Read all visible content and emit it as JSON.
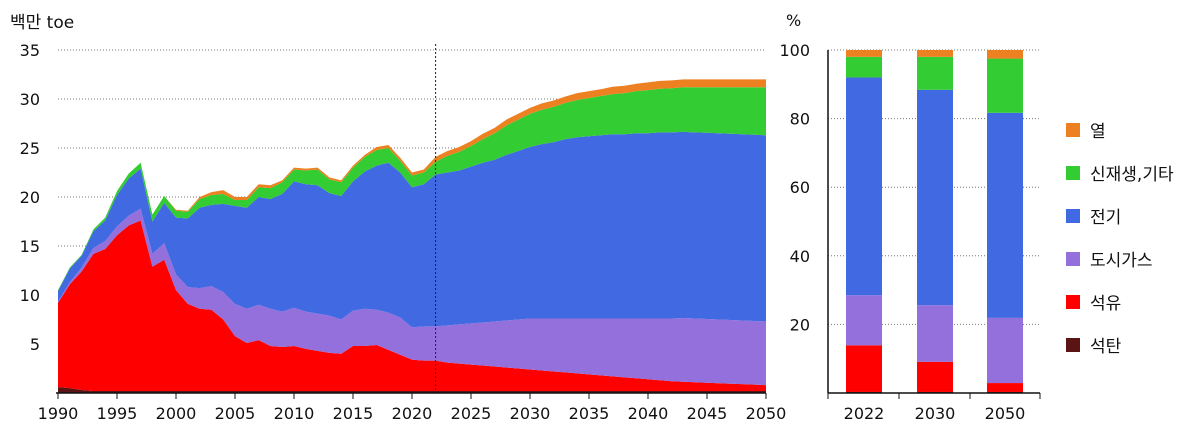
{
  "chart_data": [
    {
      "type": "area",
      "ylabel": "백만 toe",
      "x_ticks": [
        "1990",
        "1995",
        "2000",
        "2005",
        "2010",
        "2015",
        "2020",
        "2025",
        "2030",
        "2035",
        "2040",
        "2045",
        "2050"
      ],
      "y_ticks": [
        "5",
        "10",
        "15",
        "20",
        "25",
        "30",
        "35"
      ],
      "xlim": [
        1990,
        2050
      ],
      "ylim": [
        0,
        35
      ],
      "grid": "horizontal dotted",
      "reference_line_x": 2022,
      "stacking": "stacked",
      "x": [
        1990,
        1991,
        1992,
        1993,
        1994,
        1995,
        1996,
        1997,
        1998,
        1999,
        2000,
        2001,
        2002,
        2003,
        2004,
        2005,
        2006,
        2007,
        2008,
        2009,
        2010,
        2011,
        2012,
        2013,
        2014,
        2015,
        2016,
        2017,
        2018,
        2019,
        2020,
        2021,
        2022,
        2023,
        2024,
        2025,
        2026,
        2027,
        2028,
        2029,
        2030,
        2031,
        2032,
        2033,
        2034,
        2035,
        2036,
        2037,
        2038,
        2039,
        2040,
        2041,
        2042,
        2043,
        2044,
        2045,
        2046,
        2047,
        2048,
        2049,
        2050
      ],
      "series": [
        {
          "name": "석탄",
          "color": "#5a1414",
          "values": [
            0.6,
            0.5,
            0.3,
            0.2,
            0.2,
            0.2,
            0.2,
            0.2,
            0.2,
            0.2,
            0.2,
            0.2,
            0.2,
            0.2,
            0.2,
            0.2,
            0.2,
            0.2,
            0.2,
            0.2,
            0.2,
            0.2,
            0.2,
            0.2,
            0.2,
            0.2,
            0.2,
            0.2,
            0.2,
            0.2,
            0.2,
            0.2,
            0.2,
            0.2,
            0.2,
            0.2,
            0.2,
            0.2,
            0.2,
            0.2,
            0.2,
            0.2,
            0.2,
            0.2,
            0.2,
            0.2,
            0.2,
            0.2,
            0.2,
            0.2,
            0.2,
            0.2,
            0.2,
            0.2,
            0.2,
            0.2,
            0.2,
            0.2,
            0.2,
            0.2,
            0.2
          ]
        },
        {
          "name": "석유",
          "color": "#ff0000",
          "values": [
            8.6,
            10.6,
            12.1,
            14.0,
            14.5,
            15.9,
            16.9,
            17.4,
            12.7,
            13.4,
            10.3,
            8.9,
            8.4,
            8.3,
            7.3,
            5.6,
            4.9,
            5.2,
            4.6,
            4.5,
            4.6,
            4.3,
            4.1,
            3.9,
            3.8,
            4.6,
            4.6,
            4.7,
            4.2,
            3.7,
            3.2,
            3.1,
            3.1,
            2.9,
            2.8,
            2.7,
            2.6,
            2.5,
            2.4,
            2.3,
            2.2,
            2.1,
            2.0,
            1.9,
            1.8,
            1.7,
            1.6,
            1.5,
            1.4,
            1.3,
            1.2,
            1.1,
            1.0,
            0.95,
            0.9,
            0.85,
            0.8,
            0.75,
            0.7,
            0.65,
            0.6
          ]
        },
        {
          "name": "도시가스",
          "color": "#9370db",
          "values": [
            0.1,
            0.2,
            0.4,
            0.6,
            0.8,
            0.9,
            1.0,
            1.2,
            1.3,
            1.7,
            1.6,
            1.7,
            2.1,
            2.4,
            2.8,
            3.3,
            3.5,
            3.6,
            3.8,
            3.6,
            3.9,
            3.8,
            3.8,
            3.8,
            3.5,
            3.6,
            3.8,
            3.6,
            3.8,
            3.8,
            3.3,
            3.5,
            3.5,
            3.8,
            4.0,
            4.2,
            4.4,
            4.6,
            4.8,
            5.0,
            5.2,
            5.3,
            5.4,
            5.5,
            5.6,
            5.7,
            5.8,
            5.9,
            6.0,
            6.1,
            6.2,
            6.3,
            6.4,
            6.5,
            6.5,
            6.5,
            6.5,
            6.5,
            6.5,
            6.5,
            6.5
          ]
        },
        {
          "name": "전기",
          "color": "#4169e1",
          "values": [
            1.1,
            1.4,
            1.2,
            1.7,
            2.1,
            3.2,
            3.8,
            4.1,
            3.3,
            4.1,
            5.8,
            7.0,
            8.2,
            8.3,
            9.0,
            10.0,
            10.3,
            11.0,
            11.2,
            12.0,
            12.9,
            13.0,
            13.1,
            12.5,
            12.6,
            13.2,
            14.0,
            14.7,
            15.3,
            14.8,
            14.3,
            14.5,
            15.5,
            15.6,
            15.7,
            16.0,
            16.3,
            16.5,
            16.9,
            17.2,
            17.5,
            17.8,
            18.0,
            18.3,
            18.5,
            18.6,
            18.7,
            18.8,
            18.8,
            18.9,
            18.9,
            19.0,
            19.0,
            19.0,
            19.0,
            19.0,
            19.0,
            19.0,
            19.0,
            19.0,
            19.0
          ]
        },
        {
          "name": "신재생,기타",
          "color": "#33cc33",
          "values": [
            0.1,
            0.1,
            0.1,
            0.2,
            0.3,
            0.4,
            0.5,
            0.6,
            0.7,
            0.7,
            0.7,
            0.7,
            0.9,
            1.0,
            1.0,
            0.6,
            0.8,
            1.0,
            1.1,
            1.2,
            1.2,
            1.4,
            1.6,
            1.4,
            1.4,
            1.4,
            1.5,
            1.6,
            1.5,
            1.2,
            1.2,
            1.2,
            1.3,
            1.7,
            1.9,
            2.1,
            2.4,
            2.7,
            3.0,
            3.2,
            3.4,
            3.5,
            3.6,
            3.7,
            3.8,
            3.9,
            4.0,
            4.1,
            4.2,
            4.3,
            4.4,
            4.45,
            4.5,
            4.55,
            4.6,
            4.65,
            4.7,
            4.75,
            4.8,
            4.85,
            4.9
          ]
        },
        {
          "name": "열",
          "color": "#ed8121",
          "values": [
            0,
            0,
            0,
            0,
            0,
            0,
            0,
            0,
            0,
            0,
            0.1,
            0.1,
            0.2,
            0.3,
            0.4,
            0.3,
            0.3,
            0.3,
            0.3,
            0.2,
            0.2,
            0.2,
            0.2,
            0.2,
            0.2,
            0.2,
            0.2,
            0.3,
            0.3,
            0.3,
            0.3,
            0.3,
            0.5,
            0.5,
            0.5,
            0.5,
            0.55,
            0.55,
            0.6,
            0.6,
            0.6,
            0.65,
            0.65,
            0.65,
            0.7,
            0.7,
            0.7,
            0.75,
            0.75,
            0.75,
            0.8,
            0.8,
            0.8,
            0.8,
            0.8,
            0.8,
            0.8,
            0.8,
            0.8,
            0.8,
            0.8
          ]
        }
      ]
    },
    {
      "type": "bar",
      "stacking": "percent",
      "ylabel": "%",
      "categories": [
        "2022",
        "2030",
        "2050"
      ],
      "y_ticks": [
        "20",
        "40",
        "60",
        "80",
        "100"
      ],
      "ylim": [
        0,
        100
      ],
      "grid": "horizontal dotted",
      "series": [
        {
          "name": "석탄",
          "color": "#5a1414",
          "values": [
            0.3,
            0.3,
            0.3
          ]
        },
        {
          "name": "석유",
          "color": "#ff0000",
          "values": [
            13.6,
            8.8,
            2.6
          ]
        },
        {
          "name": "도시가스",
          "color": "#9370db",
          "values": [
            14.6,
            16.5,
            19.0
          ]
        },
        {
          "name": "전기",
          "color": "#4169e1",
          "values": [
            63.5,
            62.8,
            59.8
          ]
        },
        {
          "name": "신재생,기타",
          "color": "#33cc33",
          "values": [
            6.0,
            9.6,
            15.8
          ]
        },
        {
          "name": "열",
          "color": "#ed8121",
          "values": [
            2.0,
            2.0,
            2.5
          ]
        }
      ]
    }
  ],
  "legend": {
    "placement": "right",
    "items": [
      {
        "label": "열",
        "color": "#ed8121"
      },
      {
        "label": "신재생,기타",
        "color": "#33cc33"
      },
      {
        "label": "전기",
        "color": "#4169e1"
      },
      {
        "label": "도시가스",
        "color": "#9370db"
      },
      {
        "label": "석유",
        "color": "#ff0000"
      },
      {
        "label": "석탄",
        "color": "#5a1414"
      }
    ]
  }
}
